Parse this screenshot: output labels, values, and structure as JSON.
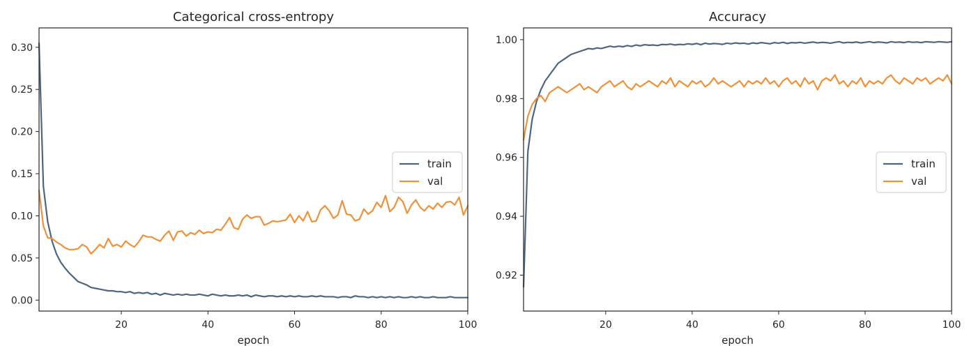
{
  "chart_data": [
    {
      "type": "line",
      "title": "Categorical cross-entropy",
      "xlabel": "epoch",
      "ylabel": "",
      "xlim": [
        1,
        100
      ],
      "ylim": [
        -0.013,
        0.323
      ],
      "x_ticks": [
        20,
        40,
        60,
        80,
        100
      ],
      "y_ticks": [
        0.0,
        0.05,
        0.1,
        0.15,
        0.2,
        0.25,
        0.3
      ],
      "y_tick_labels": [
        "0.00",
        "0.05",
        "0.10",
        "0.15",
        "0.20",
        "0.25",
        "0.30"
      ],
      "grid": false,
      "legend_position": "center-right",
      "x": [
        1,
        2,
        3,
        4,
        5,
        6,
        7,
        8,
        9,
        10,
        11,
        12,
        13,
        14,
        15,
        16,
        17,
        18,
        19,
        20,
        21,
        22,
        23,
        24,
        25,
        26,
        27,
        28,
        29,
        30,
        31,
        32,
        33,
        34,
        35,
        36,
        37,
        38,
        39,
        40,
        41,
        42,
        43,
        44,
        45,
        46,
        47,
        48,
        49,
        50,
        51,
        52,
        53,
        54,
        55,
        56,
        57,
        58,
        59,
        60,
        61,
        62,
        63,
        64,
        65,
        66,
        67,
        68,
        69,
        70,
        71,
        72,
        73,
        74,
        75,
        76,
        77,
        78,
        79,
        80,
        81,
        82,
        83,
        84,
        85,
        86,
        87,
        88,
        89,
        90,
        91,
        92,
        93,
        94,
        95,
        96,
        97,
        98,
        99,
        100
      ],
      "series": [
        {
          "name": "train",
          "color": "#4d6680",
          "values": [
            0.305,
            0.135,
            0.093,
            0.07,
            0.055,
            0.045,
            0.038,
            0.032,
            0.027,
            0.022,
            0.02,
            0.018,
            0.015,
            0.014,
            0.013,
            0.012,
            0.011,
            0.011,
            0.01,
            0.01,
            0.009,
            0.01,
            0.008,
            0.009,
            0.008,
            0.009,
            0.007,
            0.008,
            0.006,
            0.008,
            0.007,
            0.006,
            0.007,
            0.006,
            0.007,
            0.006,
            0.006,
            0.007,
            0.006,
            0.005,
            0.007,
            0.006,
            0.005,
            0.006,
            0.005,
            0.005,
            0.006,
            0.005,
            0.006,
            0.004,
            0.006,
            0.005,
            0.004,
            0.005,
            0.005,
            0.004,
            0.005,
            0.004,
            0.005,
            0.004,
            0.005,
            0.004,
            0.004,
            0.005,
            0.004,
            0.005,
            0.004,
            0.004,
            0.004,
            0.003,
            0.004,
            0.004,
            0.003,
            0.005,
            0.004,
            0.004,
            0.003,
            0.004,
            0.003,
            0.004,
            0.003,
            0.004,
            0.003,
            0.004,
            0.003,
            0.003,
            0.004,
            0.003,
            0.004,
            0.003,
            0.003,
            0.004,
            0.003,
            0.003,
            0.003,
            0.004,
            0.003,
            0.003,
            0.003,
            0.003
          ]
        },
        {
          "name": "val",
          "color": "#f0913a",
          "values": [
            0.13,
            0.088,
            0.074,
            0.073,
            0.069,
            0.066,
            0.062,
            0.06,
            0.06,
            0.061,
            0.066,
            0.063,
            0.055,
            0.06,
            0.066,
            0.062,
            0.073,
            0.064,
            0.066,
            0.063,
            0.07,
            0.066,
            0.063,
            0.069,
            0.077,
            0.075,
            0.075,
            0.072,
            0.07,
            0.077,
            0.082,
            0.071,
            0.081,
            0.082,
            0.076,
            0.08,
            0.078,
            0.083,
            0.079,
            0.081,
            0.08,
            0.084,
            0.083,
            0.09,
            0.098,
            0.086,
            0.084,
            0.096,
            0.101,
            0.097,
            0.099,
            0.099,
            0.089,
            0.091,
            0.094,
            0.093,
            0.094,
            0.095,
            0.102,
            0.092,
            0.1,
            0.094,
            0.105,
            0.093,
            0.094,
            0.107,
            0.112,
            0.106,
            0.097,
            0.101,
            0.118,
            0.102,
            0.101,
            0.094,
            0.096,
            0.108,
            0.102,
            0.106,
            0.116,
            0.11,
            0.124,
            0.105,
            0.11,
            0.122,
            0.117,
            0.103,
            0.113,
            0.119,
            0.11,
            0.106,
            0.112,
            0.108,
            0.115,
            0.11,
            0.116,
            0.117,
            0.113,
            0.122,
            0.101,
            0.112
          ]
        }
      ]
    },
    {
      "type": "line",
      "title": "Accuracy",
      "xlabel": "epoch",
      "ylabel": "",
      "xlim": [
        1,
        100
      ],
      "ylim": [
        0.9078,
        1.004
      ],
      "x_ticks": [
        20,
        40,
        60,
        80,
        100
      ],
      "y_ticks": [
        0.92,
        0.94,
        0.96,
        0.98,
        1.0
      ],
      "y_tick_labels": [
        "0.92",
        "0.94",
        "0.96",
        "0.98",
        "1.00"
      ],
      "grid": false,
      "legend_position": "center-right",
      "x": [
        1,
        2,
        3,
        4,
        5,
        6,
        7,
        8,
        9,
        10,
        11,
        12,
        13,
        14,
        15,
        16,
        17,
        18,
        19,
        20,
        21,
        22,
        23,
        24,
        25,
        26,
        27,
        28,
        29,
        30,
        31,
        32,
        33,
        34,
        35,
        36,
        37,
        38,
        39,
        40,
        41,
        42,
        43,
        44,
        45,
        46,
        47,
        48,
        49,
        50,
        51,
        52,
        53,
        54,
        55,
        56,
        57,
        58,
        59,
        60,
        61,
        62,
        63,
        64,
        65,
        66,
        67,
        68,
        69,
        70,
        71,
        72,
        73,
        74,
        75,
        76,
        77,
        78,
        79,
        80,
        81,
        82,
        83,
        84,
        85,
        86,
        87,
        88,
        89,
        90,
        91,
        92,
        93,
        94,
        95,
        96,
        97,
        98,
        99,
        100
      ],
      "series": [
        {
          "name": "train",
          "color": "#4d6680",
          "values": [
            0.916,
            0.962,
            0.973,
            0.979,
            0.983,
            0.986,
            0.988,
            0.99,
            0.992,
            0.993,
            0.994,
            0.995,
            0.9955,
            0.996,
            0.9965,
            0.997,
            0.9968,
            0.9972,
            0.997,
            0.9974,
            0.9978,
            0.9975,
            0.9978,
            0.9976,
            0.998,
            0.9977,
            0.9982,
            0.9979,
            0.9983,
            0.9981,
            0.9982,
            0.998,
            0.9984,
            0.9983,
            0.9985,
            0.9982,
            0.9984,
            0.9983,
            0.9986,
            0.9984,
            0.9987,
            0.9983,
            0.9988,
            0.9985,
            0.9987,
            0.9986,
            0.9984,
            0.9988,
            0.9986,
            0.9989,
            0.9987,
            0.9988,
            0.9985,
            0.9989,
            0.9987,
            0.999,
            0.9988,
            0.9986,
            0.999,
            0.9988,
            0.9991,
            0.9987,
            0.999,
            0.9989,
            0.9991,
            0.9988,
            0.999,
            0.9992,
            0.9989,
            0.9991,
            0.999,
            0.9988,
            0.9991,
            0.9993,
            0.9989,
            0.9991,
            0.999,
            0.9992,
            0.9989,
            0.9991,
            0.9993,
            0.999,
            0.9992,
            0.9991,
            0.9989,
            0.9993,
            0.9991,
            0.9992,
            0.999,
            0.9993,
            0.9991,
            0.9992,
            0.999,
            0.9993,
            0.9992,
            0.9991,
            0.9993,
            0.9992,
            0.9991,
            0.9993
          ]
        },
        {
          "name": "val",
          "color": "#f0913a",
          "values": [
            0.966,
            0.974,
            0.978,
            0.98,
            0.981,
            0.979,
            0.982,
            0.983,
            0.984,
            0.983,
            0.982,
            0.983,
            0.984,
            0.985,
            0.983,
            0.984,
            0.983,
            0.982,
            0.984,
            0.985,
            0.986,
            0.984,
            0.985,
            0.986,
            0.984,
            0.983,
            0.985,
            0.984,
            0.985,
            0.986,
            0.985,
            0.984,
            0.986,
            0.985,
            0.987,
            0.984,
            0.986,
            0.985,
            0.984,
            0.986,
            0.985,
            0.986,
            0.984,
            0.985,
            0.987,
            0.985,
            0.986,
            0.985,
            0.984,
            0.985,
            0.986,
            0.984,
            0.986,
            0.985,
            0.986,
            0.985,
            0.987,
            0.985,
            0.986,
            0.984,
            0.986,
            0.987,
            0.985,
            0.986,
            0.984,
            0.987,
            0.985,
            0.986,
            0.983,
            0.986,
            0.987,
            0.986,
            0.988,
            0.985,
            0.986,
            0.984,
            0.986,
            0.985,
            0.987,
            0.984,
            0.986,
            0.985,
            0.986,
            0.985,
            0.987,
            0.988,
            0.986,
            0.985,
            0.987,
            0.986,
            0.985,
            0.987,
            0.986,
            0.987,
            0.985,
            0.986,
            0.987,
            0.986,
            0.988,
            0.985
          ]
        }
      ]
    }
  ],
  "legend": {
    "train_label": "train",
    "val_label": "val"
  }
}
